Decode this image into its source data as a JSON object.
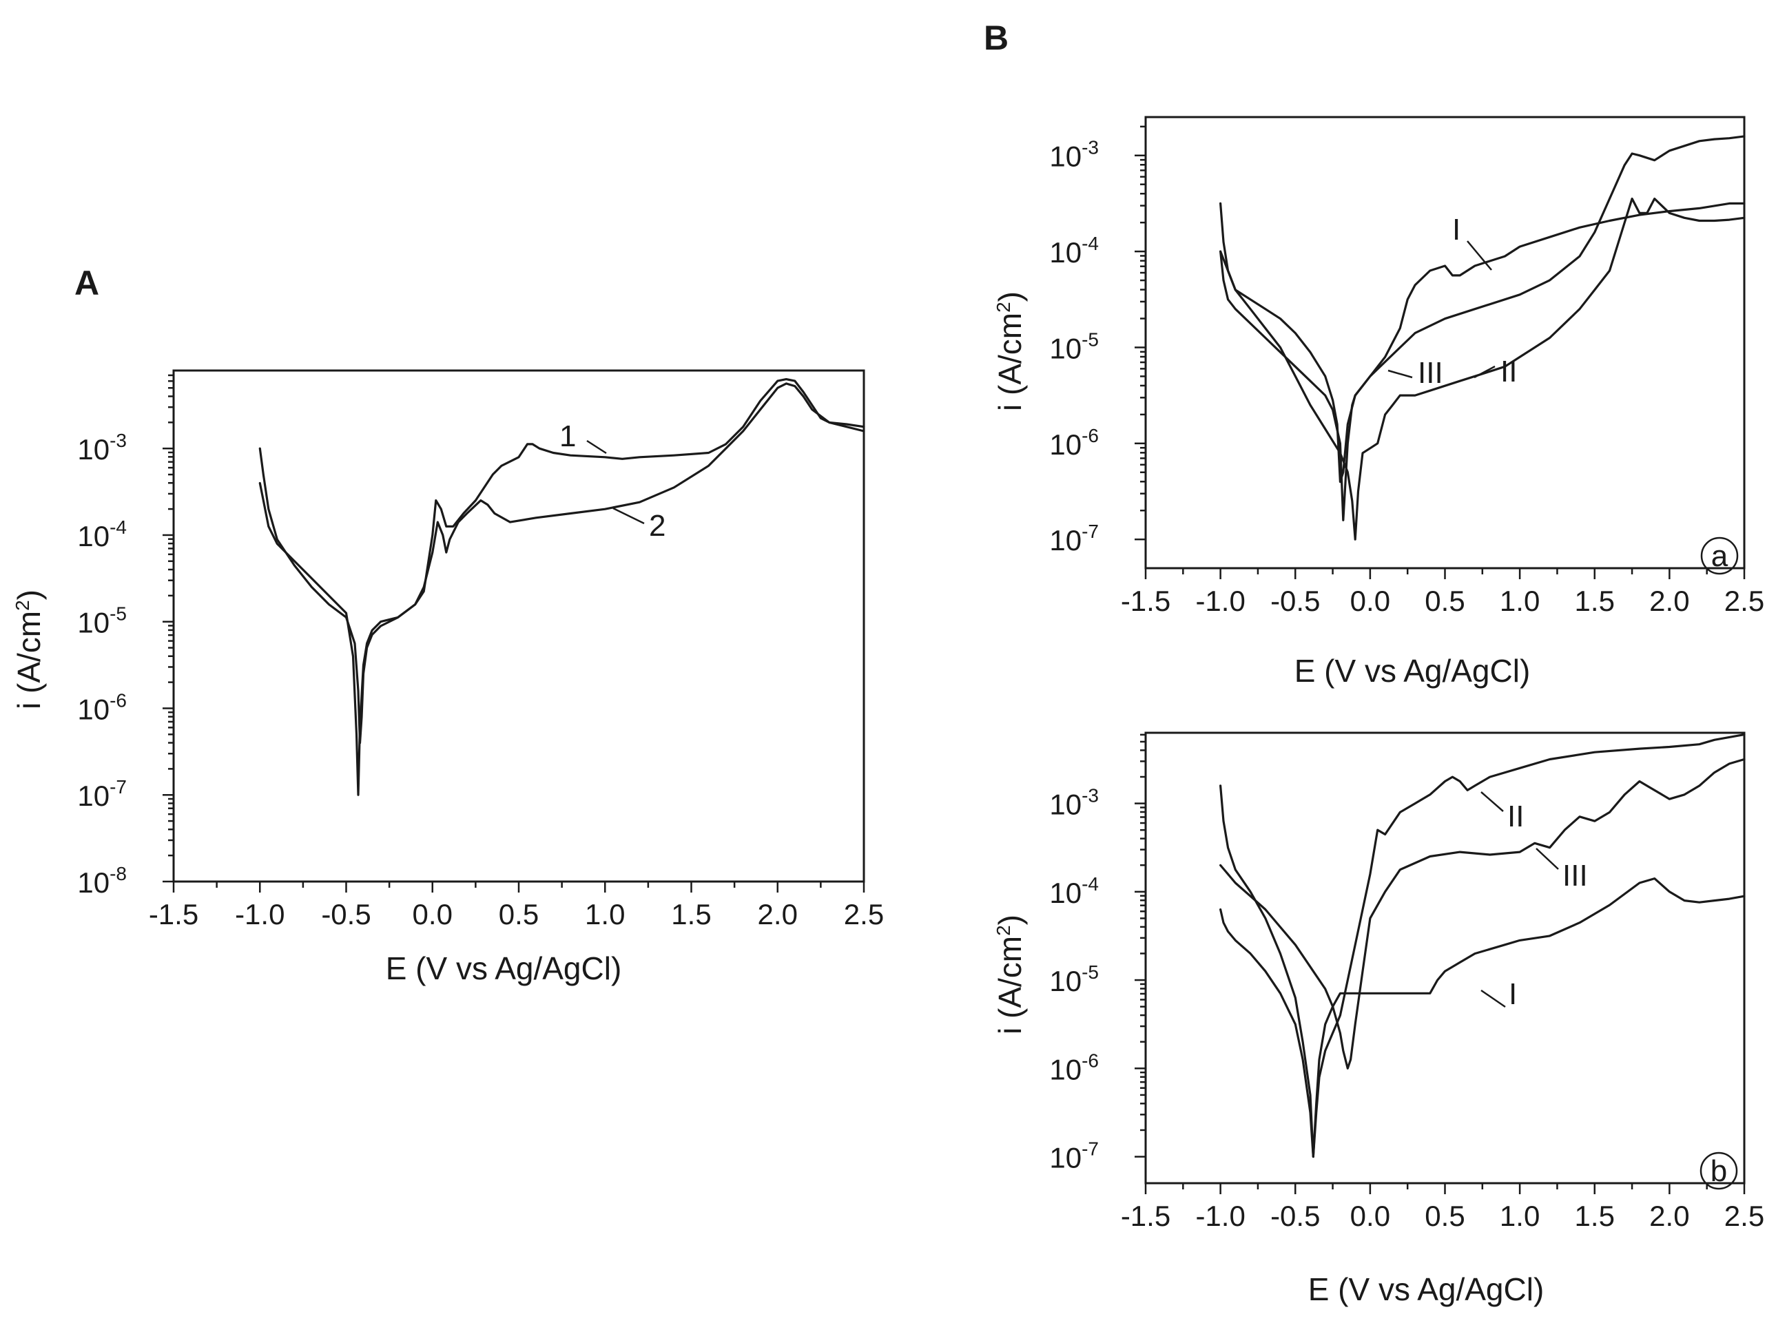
{
  "figure": {
    "panel_labels": {
      "A": "A",
      "B": "B"
    }
  },
  "chart_data": [
    {
      "id": "A",
      "type": "line",
      "panel_label": "A",
      "subpanel_label": "",
      "xlabel": "E (V vs Ag/AgCl)",
      "ylabel_base": "i (A/cm",
      "ylabel_sup": "2",
      "ylabel_close": ")",
      "yscale": "log",
      "xlim": [
        -1.5,
        2.5
      ],
      "ylim_log10": [
        -8,
        -2.1
      ],
      "x_ticks": [
        -1.5,
        -1.0,
        -0.5,
        0.0,
        0.5,
        1.0,
        1.5,
        2.0,
        2.5
      ],
      "x_tick_labels": [
        "-1.5",
        "-1.0",
        "-0.5",
        "0.0",
        "0.5",
        "1.0",
        "1.5",
        "2.0",
        "2.5"
      ],
      "y_ticks_exp": [
        -8,
        -7,
        -6,
        -5,
        -4,
        -3
      ],
      "y_tick_base": "10",
      "y_tick_exps": [
        "-8",
        "-7",
        "-6",
        "-5",
        "-4",
        "-3"
      ],
      "series": [
        {
          "name": "1",
          "x": [
            -1.0,
            -0.98,
            -0.95,
            -0.9,
            -0.8,
            -0.7,
            -0.6,
            -0.5,
            -0.45,
            -0.43,
            -0.42,
            -0.41,
            -0.4,
            -0.38,
            -0.35,
            -0.3,
            -0.2,
            -0.1,
            -0.05,
            0.0,
            0.02,
            0.05,
            0.08,
            0.12,
            0.18,
            0.25,
            0.3,
            0.35,
            0.4,
            0.5,
            0.55,
            0.58,
            0.62,
            0.7,
            0.8,
            1.0,
            1.1,
            1.2,
            1.4,
            1.6,
            1.7,
            1.8,
            1.9,
            2.0,
            2.05,
            2.1,
            2.15,
            2.2,
            2.25,
            2.3,
            2.4,
            2.5
          ],
          "log10_y": [
            -3.0,
            -3.3,
            -3.7,
            -4.05,
            -4.35,
            -4.6,
            -4.8,
            -4.95,
            -5.25,
            -5.8,
            -6.4,
            -6.1,
            -5.6,
            -5.3,
            -5.15,
            -5.05,
            -4.95,
            -4.8,
            -4.65,
            -4.0,
            -3.6,
            -3.7,
            -3.9,
            -3.9,
            -3.75,
            -3.6,
            -3.45,
            -3.3,
            -3.2,
            -3.1,
            -2.95,
            -2.95,
            -3.0,
            -3.05,
            -3.08,
            -3.1,
            -3.12,
            -3.1,
            -3.08,
            -3.05,
            -2.95,
            -2.75,
            -2.45,
            -2.22,
            -2.2,
            -2.22,
            -2.35,
            -2.5,
            -2.65,
            -2.7,
            -2.72,
            -2.75
          ]
        },
        {
          "name": "2",
          "x": [
            -1.0,
            -0.98,
            -0.95,
            -0.9,
            -0.8,
            -0.7,
            -0.6,
            -0.5,
            -0.46,
            -0.44,
            -0.43,
            -0.42,
            -0.4,
            -0.38,
            -0.35,
            -0.3,
            -0.2,
            -0.1,
            -0.05,
            0.0,
            0.03,
            0.06,
            0.08,
            0.1,
            0.15,
            0.2,
            0.28,
            0.32,
            0.36,
            0.45,
            0.6,
            0.8,
            1.0,
            1.2,
            1.4,
            1.6,
            1.7,
            1.8,
            1.9,
            2.0,
            2.05,
            2.1,
            2.15,
            2.2,
            2.3,
            2.4,
            2.5
          ],
          "log10_y": [
            -3.4,
            -3.6,
            -3.9,
            -4.1,
            -4.3,
            -4.5,
            -4.7,
            -4.9,
            -5.4,
            -6.3,
            -7.0,
            -6.2,
            -5.5,
            -5.25,
            -5.1,
            -5.0,
            -4.95,
            -4.8,
            -4.6,
            -4.2,
            -3.85,
            -4.0,
            -4.2,
            -4.05,
            -3.85,
            -3.75,
            -3.6,
            -3.65,
            -3.75,
            -3.85,
            -3.8,
            -3.75,
            -3.7,
            -3.62,
            -3.45,
            -3.2,
            -3.0,
            -2.8,
            -2.55,
            -2.3,
            -2.25,
            -2.28,
            -2.4,
            -2.55,
            -2.7,
            -2.75,
            -2.8
          ]
        }
      ],
      "curve_labels": [
        "1",
        "2"
      ]
    },
    {
      "id": "Ba",
      "type": "line",
      "panel_label": "B",
      "subpanel_label": "a",
      "xlabel": "E (V vs Ag/AgCl)",
      "ylabel_base": "i (A/cm",
      "ylabel_sup": "2",
      "ylabel_close": ")",
      "yscale": "log",
      "xlim": [
        -1.5,
        2.5
      ],
      "ylim_log10": [
        -7.3,
        -2.6
      ],
      "x_ticks": [
        -1.5,
        -1.0,
        -0.5,
        0.0,
        0.5,
        1.0,
        1.5,
        2.0,
        2.5
      ],
      "x_tick_labels": [
        "-1.5",
        "-1.0",
        "-0.5",
        "0.0",
        "0.5",
        "1.0",
        "1.5",
        "2.0",
        "2.5"
      ],
      "y_ticks_exp": [
        -7,
        -6,
        -5,
        -4,
        -3
      ],
      "y_tick_base": "10",
      "y_tick_exps": [
        "-7",
        "-6",
        "-5",
        "-4",
        "-3"
      ],
      "series": [
        {
          "name": "I",
          "x": [
            -1.0,
            -0.98,
            -0.95,
            -0.9,
            -0.8,
            -0.7,
            -0.6,
            -0.5,
            -0.4,
            -0.3,
            -0.25,
            -0.22,
            -0.2,
            -0.18,
            -0.15,
            -0.1,
            0.0,
            0.1,
            0.2,
            0.25,
            0.3,
            0.4,
            0.5,
            0.55,
            0.6,
            0.7,
            0.8,
            0.9,
            1.0,
            1.2,
            1.4,
            1.6,
            1.8,
            2.0,
            2.2,
            2.4,
            2.5
          ],
          "log10_y": [
            -3.5,
            -3.9,
            -4.2,
            -4.4,
            -4.5,
            -4.6,
            -4.7,
            -4.85,
            -5.05,
            -5.3,
            -5.55,
            -5.8,
            -6.4,
            -6.3,
            -5.8,
            -5.5,
            -5.3,
            -5.1,
            -4.8,
            -4.5,
            -4.35,
            -4.2,
            -4.15,
            -4.25,
            -4.25,
            -4.15,
            -4.1,
            -4.05,
            -3.95,
            -3.85,
            -3.75,
            -3.68,
            -3.62,
            -3.58,
            -3.55,
            -3.5,
            -3.5
          ]
        },
        {
          "name": "II",
          "x": [
            -1.0,
            -0.95,
            -0.9,
            -0.8,
            -0.7,
            -0.6,
            -0.5,
            -0.4,
            -0.3,
            -0.2,
            -0.15,
            -0.12,
            -0.1,
            -0.08,
            -0.05,
            0.0,
            0.05,
            0.1,
            0.15,
            0.2,
            0.3,
            0.4,
            0.5,
            0.6,
            0.7,
            0.8,
            0.9,
            1.0,
            1.2,
            1.4,
            1.5,
            1.6,
            1.7,
            1.75,
            1.8,
            1.85,
            1.9,
            2.0,
            2.1,
            2.2,
            2.3,
            2.4,
            2.5
          ],
          "log10_y": [
            -4.0,
            -4.2,
            -4.4,
            -4.6,
            -4.8,
            -5.0,
            -5.3,
            -5.6,
            -5.85,
            -6.1,
            -6.3,
            -6.6,
            -7.0,
            -6.5,
            -6.1,
            -6.05,
            -6.0,
            -5.7,
            -5.6,
            -5.5,
            -5.5,
            -5.45,
            -5.4,
            -5.35,
            -5.3,
            -5.25,
            -5.2,
            -5.1,
            -4.9,
            -4.6,
            -4.4,
            -4.2,
            -3.7,
            -3.45,
            -3.6,
            -3.6,
            -3.45,
            -3.6,
            -3.65,
            -3.68,
            -3.68,
            -3.67,
            -3.65
          ]
        },
        {
          "name": "III",
          "x": [
            -1.0,
            -0.98,
            -0.95,
            -0.9,
            -0.8,
            -0.7,
            -0.6,
            -0.5,
            -0.4,
            -0.3,
            -0.25,
            -0.2,
            -0.18,
            -0.15,
            -0.12,
            -0.1,
            0.0,
            0.1,
            0.2,
            0.3,
            0.5,
            0.7,
            1.0,
            1.2,
            1.4,
            1.5,
            1.6,
            1.7,
            1.75,
            1.8,
            1.9,
            2.0,
            2.1,
            2.2,
            2.3,
            2.4,
            2.5
          ],
          "log10_y": [
            -4.0,
            -4.3,
            -4.5,
            -4.6,
            -4.75,
            -4.9,
            -5.05,
            -5.2,
            -5.35,
            -5.5,
            -5.65,
            -6.0,
            -6.8,
            -6.0,
            -5.6,
            -5.5,
            -5.3,
            -5.15,
            -5.0,
            -4.85,
            -4.7,
            -4.6,
            -4.45,
            -4.3,
            -4.05,
            -3.8,
            -3.45,
            -3.1,
            -2.98,
            -3.0,
            -3.05,
            -2.95,
            -2.9,
            -2.85,
            -2.83,
            -2.82,
            -2.8
          ]
        }
      ],
      "curve_labels": [
        "I",
        "II",
        "III"
      ]
    },
    {
      "id": "Bb",
      "type": "line",
      "panel_label": "",
      "subpanel_label": "b",
      "xlabel": "E (V vs Ag/AgCl)",
      "ylabel_base": "i (A/cm",
      "ylabel_sup": "2",
      "ylabel_close": ")",
      "yscale": "log",
      "xlim": [
        -1.5,
        2.5
      ],
      "ylim_log10": [
        -7.3,
        -2.2
      ],
      "x_ticks": [
        -1.5,
        -1.0,
        -0.5,
        0.0,
        0.5,
        1.0,
        1.5,
        2.0,
        2.5
      ],
      "x_tick_labels": [
        "-1.5",
        "-1.0",
        "-0.5",
        "0.0",
        "0.5",
        "1.0",
        "1.5",
        "2.0",
        "2.5"
      ],
      "y_ticks_exp": [
        -7,
        -6,
        -5,
        -4,
        -3
      ],
      "y_tick_base": "10",
      "y_tick_exps": [
        "-7",
        "-6",
        "-5",
        "-4",
        "-3"
      ],
      "series": [
        {
          "name": "I",
          "x": [
            -1.0,
            -0.98,
            -0.95,
            -0.9,
            -0.8,
            -0.7,
            -0.6,
            -0.5,
            -0.45,
            -0.4,
            -0.38,
            -0.36,
            -0.34,
            -0.3,
            -0.25,
            -0.2,
            0.0,
            0.2,
            0.4,
            0.45,
            0.5,
            0.6,
            0.7,
            0.8,
            0.9,
            1.0,
            1.2,
            1.4,
            1.6,
            1.8,
            1.9,
            2.0,
            2.1,
            2.2,
            2.3,
            2.4,
            2.5
          ],
          "log10_y": [
            -4.2,
            -4.35,
            -4.45,
            -4.55,
            -4.7,
            -4.9,
            -5.15,
            -5.5,
            -5.9,
            -6.5,
            -7.0,
            -6.4,
            -5.9,
            -5.5,
            -5.3,
            -5.15,
            -5.15,
            -5.15,
            -5.15,
            -5.0,
            -4.9,
            -4.8,
            -4.7,
            -4.65,
            -4.6,
            -4.55,
            -4.5,
            -4.35,
            -4.15,
            -3.9,
            -3.85,
            -4.0,
            -4.1,
            -4.12,
            -4.1,
            -4.08,
            -4.05
          ]
        },
        {
          "name": "II",
          "x": [
            -1.0,
            -0.98,
            -0.95,
            -0.9,
            -0.8,
            -0.7,
            -0.6,
            -0.5,
            -0.45,
            -0.4,
            -0.38,
            -0.36,
            -0.34,
            -0.3,
            -0.2,
            -0.1,
            0.0,
            0.05,
            0.1,
            0.2,
            0.3,
            0.4,
            0.5,
            0.55,
            0.6,
            0.65,
            0.7,
            0.8,
            1.0,
            1.2,
            1.5,
            1.8,
            2.0,
            2.2,
            2.3,
            2.4,
            2.5
          ],
          "log10_y": [
            -2.8,
            -3.2,
            -3.5,
            -3.75,
            -4.0,
            -4.3,
            -4.7,
            -5.2,
            -5.7,
            -6.3,
            -7.0,
            -6.5,
            -6.1,
            -5.8,
            -5.4,
            -4.6,
            -3.8,
            -3.3,
            -3.35,
            -3.1,
            -3.0,
            -2.9,
            -2.75,
            -2.7,
            -2.75,
            -2.85,
            -2.8,
            -2.7,
            -2.6,
            -2.5,
            -2.42,
            -2.38,
            -2.36,
            -2.33,
            -2.28,
            -2.25,
            -2.22
          ]
        },
        {
          "name": "III",
          "x": [
            -1.0,
            -0.95,
            -0.9,
            -0.8,
            -0.7,
            -0.6,
            -0.5,
            -0.4,
            -0.3,
            -0.25,
            -0.2,
            -0.18,
            -0.15,
            -0.13,
            -0.1,
            -0.05,
            0.0,
            0.1,
            0.2,
            0.4,
            0.6,
            0.8,
            1.0,
            1.1,
            1.2,
            1.3,
            1.4,
            1.5,
            1.6,
            1.7,
            1.8,
            1.9,
            2.0,
            2.1,
            2.2,
            2.3,
            2.4,
            2.5
          ],
          "log10_y": [
            -3.7,
            -3.8,
            -3.9,
            -4.05,
            -4.2,
            -4.4,
            -4.6,
            -4.85,
            -5.1,
            -5.3,
            -5.6,
            -5.8,
            -6.0,
            -5.9,
            -5.5,
            -4.9,
            -4.3,
            -4.0,
            -3.75,
            -3.6,
            -3.55,
            -3.58,
            -3.55,
            -3.45,
            -3.5,
            -3.3,
            -3.15,
            -3.2,
            -3.1,
            -2.9,
            -2.75,
            -2.85,
            -2.95,
            -2.9,
            -2.8,
            -2.65,
            -2.55,
            -2.5
          ]
        }
      ],
      "curve_labels": [
        "I",
        "II",
        "III"
      ]
    }
  ]
}
